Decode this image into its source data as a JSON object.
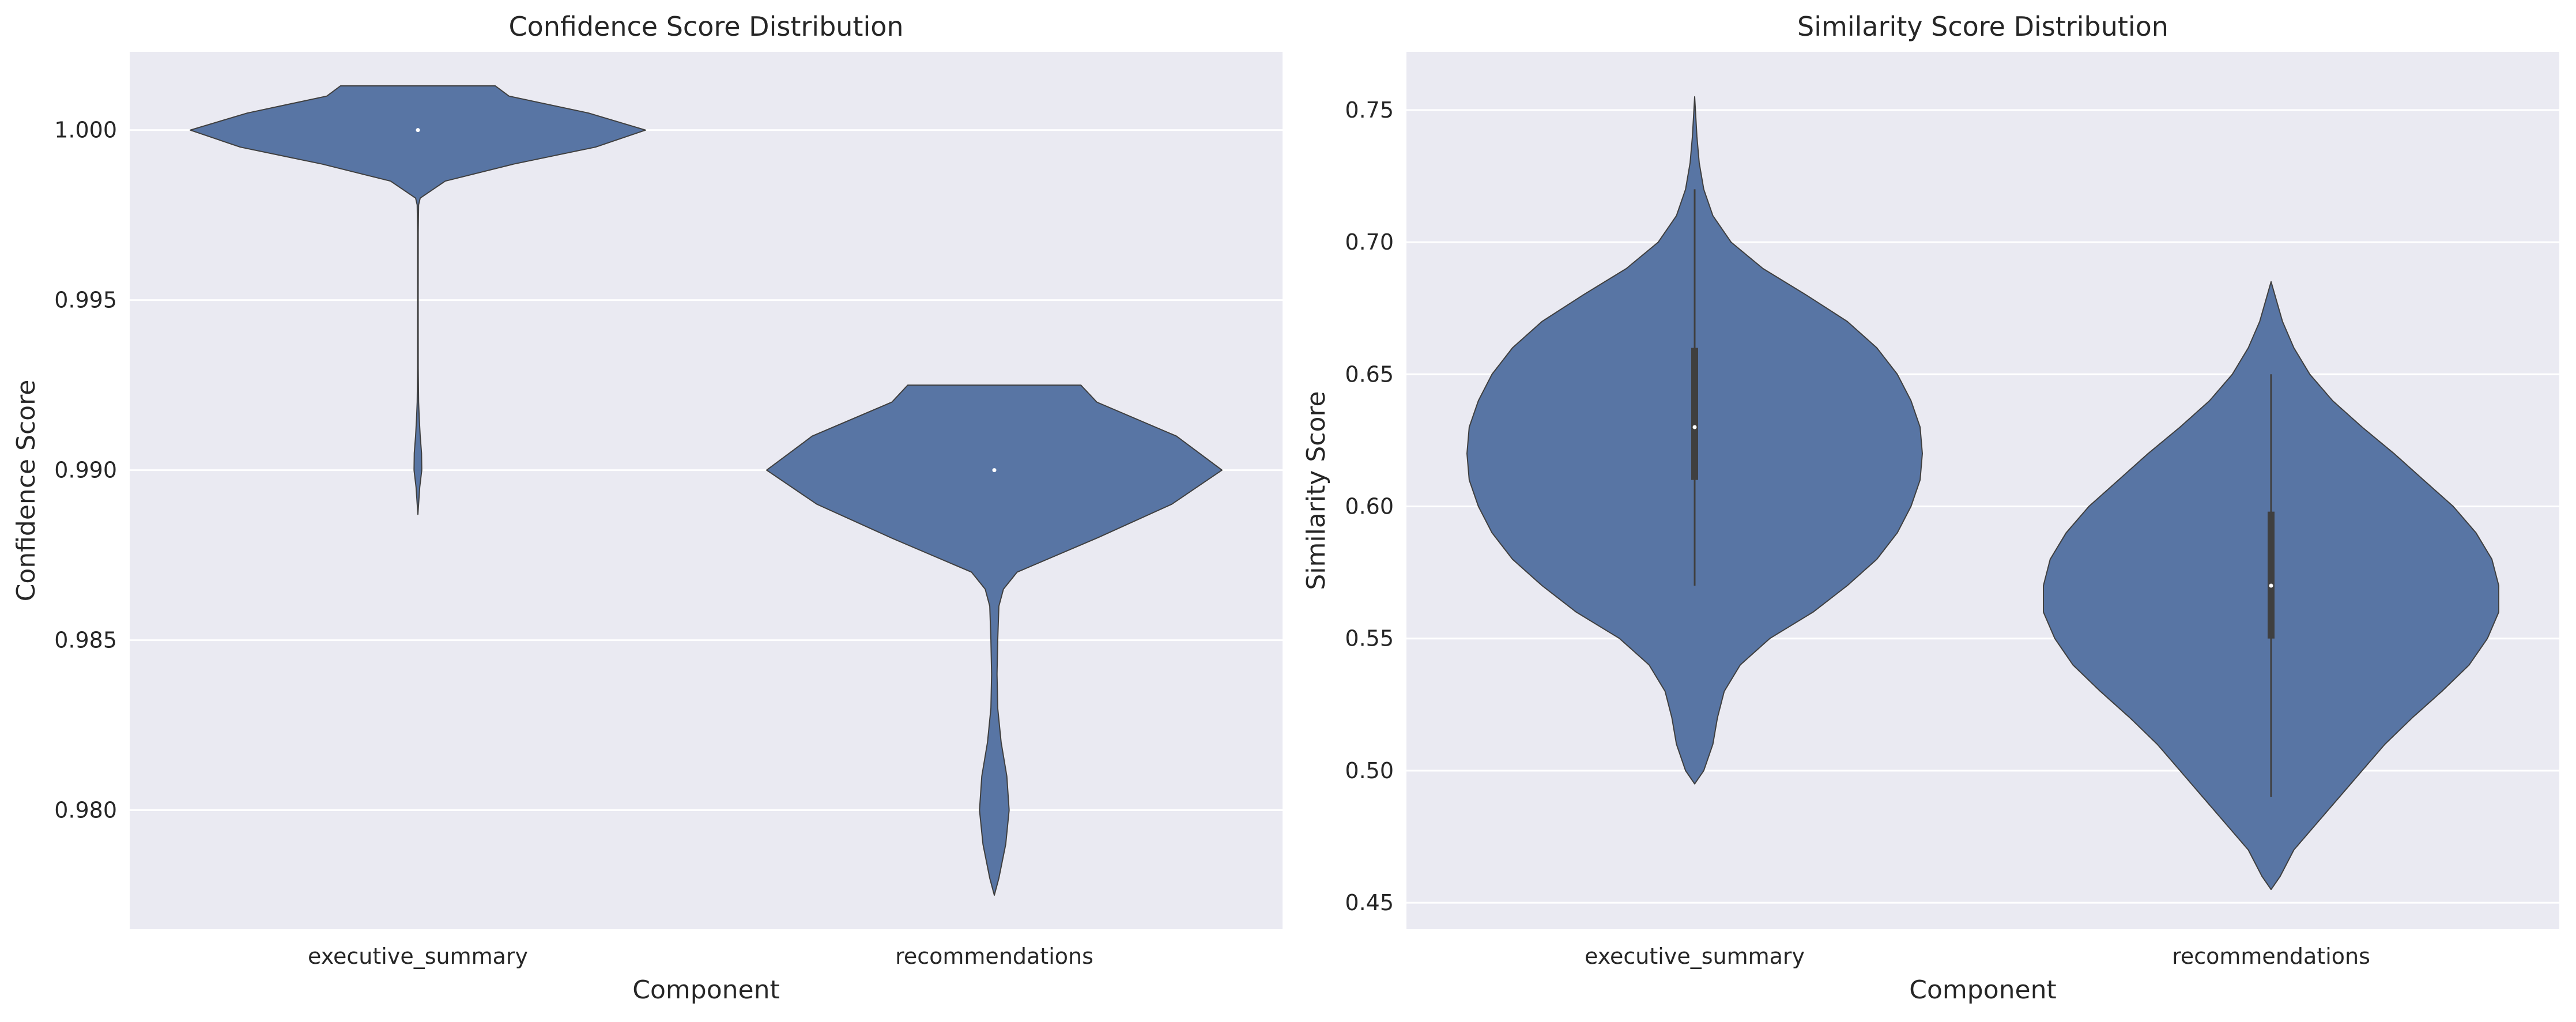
{
  "chart_data": [
    {
      "type": "violin",
      "title": "Confidence Score Distribution",
      "xlabel": "Component",
      "ylabel": "Confidence Score",
      "categories": [
        "executive_summary",
        "recommendations"
      ],
      "ylim": [
        0.9765,
        1.0023
      ],
      "yticks": [
        "0.980",
        "0.985",
        "0.990",
        "0.995",
        "1.000"
      ],
      "grid": true,
      "color": "#5875a4",
      "series": [
        {
          "category": "executive_summary",
          "range": [
            0.9887,
            1.0013
          ],
          "median": 1.0,
          "q1": 1.0,
          "q3": 1.0,
          "density": [
            [
              0.9887,
              0.0
            ],
            [
              0.9895,
              0.008
            ],
            [
              0.99,
              0.017
            ],
            [
              0.9905,
              0.016
            ],
            [
              0.991,
              0.01
            ],
            [
              0.9915,
              0.006
            ],
            [
              0.992,
              0.003
            ],
            [
              0.993,
              0.0015
            ],
            [
              0.995,
              0.0012
            ],
            [
              0.997,
              0.0015
            ],
            [
              0.9978,
              0.003
            ],
            [
              0.998,
              0.01
            ],
            [
              0.9985,
              0.12
            ],
            [
              0.999,
              0.42
            ],
            [
              0.9995,
              0.78
            ],
            [
              1.0,
              1.0
            ],
            [
              1.0005,
              0.75
            ],
            [
              1.001,
              0.4
            ],
            [
              1.0013,
              0.34
            ]
          ]
        },
        {
          "category": "recommendations",
          "range": [
            0.9775,
            0.9925
          ],
          "median": 0.99,
          "q1": 0.99,
          "q3": 0.99,
          "density": [
            [
              0.9775,
              0.0
            ],
            [
              0.978,
              0.02
            ],
            [
              0.979,
              0.05
            ],
            [
              0.98,
              0.065
            ],
            [
              0.981,
              0.055
            ],
            [
              0.982,
              0.03
            ],
            [
              0.983,
              0.015
            ],
            [
              0.984,
              0.012
            ],
            [
              0.985,
              0.015
            ],
            [
              0.986,
              0.02
            ],
            [
              0.9865,
              0.04
            ],
            [
              0.987,
              0.1
            ],
            [
              0.988,
              0.45
            ],
            [
              0.989,
              0.78
            ],
            [
              0.99,
              1.0
            ],
            [
              0.991,
              0.8
            ],
            [
              0.992,
              0.45
            ],
            [
              0.9925,
              0.38
            ]
          ]
        }
      ]
    },
    {
      "type": "violin",
      "title": "Similarity Score Distribution",
      "xlabel": "Component",
      "ylabel": "Similarity Score",
      "categories": [
        "executive_summary",
        "recommendations"
      ],
      "ylim": [
        0.44,
        0.772
      ],
      "yticks": [
        "0.45",
        "0.50",
        "0.55",
        "0.60",
        "0.65",
        "0.70",
        "0.75"
      ],
      "grid": true,
      "color": "#5875a4",
      "series": [
        {
          "category": "executive_summary",
          "range": [
            0.495,
            0.755
          ],
          "median": 0.63,
          "q1": 0.61,
          "q3": 0.66,
          "whisker": [
            0.57,
            0.72
          ],
          "density": [
            [
              0.495,
              0.0
            ],
            [
              0.5,
              0.04
            ],
            [
              0.51,
              0.08
            ],
            [
              0.52,
              0.1
            ],
            [
              0.53,
              0.13
            ],
            [
              0.54,
              0.2
            ],
            [
              0.55,
              0.33
            ],
            [
              0.56,
              0.52
            ],
            [
              0.57,
              0.67
            ],
            [
              0.58,
              0.8
            ],
            [
              0.59,
              0.89
            ],
            [
              0.6,
              0.95
            ],
            [
              0.61,
              0.99
            ],
            [
              0.62,
              1.0
            ],
            [
              0.63,
              0.99
            ],
            [
              0.64,
              0.95
            ],
            [
              0.65,
              0.89
            ],
            [
              0.66,
              0.8
            ],
            [
              0.67,
              0.67
            ],
            [
              0.68,
              0.49
            ],
            [
              0.69,
              0.3
            ],
            [
              0.7,
              0.16
            ],
            [
              0.71,
              0.08
            ],
            [
              0.72,
              0.04
            ],
            [
              0.73,
              0.02
            ],
            [
              0.74,
              0.01
            ],
            [
              0.755,
              0.0
            ]
          ]
        },
        {
          "category": "recommendations",
          "range": [
            0.455,
            0.685
          ],
          "median": 0.57,
          "q1": 0.55,
          "q3": 0.598,
          "whisker": [
            0.49,
            0.65
          ],
          "density": [
            [
              0.455,
              0.0
            ],
            [
              0.46,
              0.04
            ],
            [
              0.47,
              0.1
            ],
            [
              0.48,
              0.2
            ],
            [
              0.49,
              0.3
            ],
            [
              0.5,
              0.4
            ],
            [
              0.51,
              0.5
            ],
            [
              0.52,
              0.62
            ],
            [
              0.53,
              0.75
            ],
            [
              0.54,
              0.87
            ],
            [
              0.55,
              0.95
            ],
            [
              0.56,
              1.0
            ],
            [
              0.57,
              1.0
            ],
            [
              0.58,
              0.97
            ],
            [
              0.59,
              0.9
            ],
            [
              0.6,
              0.8
            ],
            [
              0.61,
              0.67
            ],
            [
              0.62,
              0.54
            ],
            [
              0.63,
              0.4
            ],
            [
              0.64,
              0.27
            ],
            [
              0.65,
              0.17
            ],
            [
              0.66,
              0.1
            ],
            [
              0.67,
              0.05
            ],
            [
              0.685,
              0.0
            ]
          ]
        }
      ]
    }
  ]
}
